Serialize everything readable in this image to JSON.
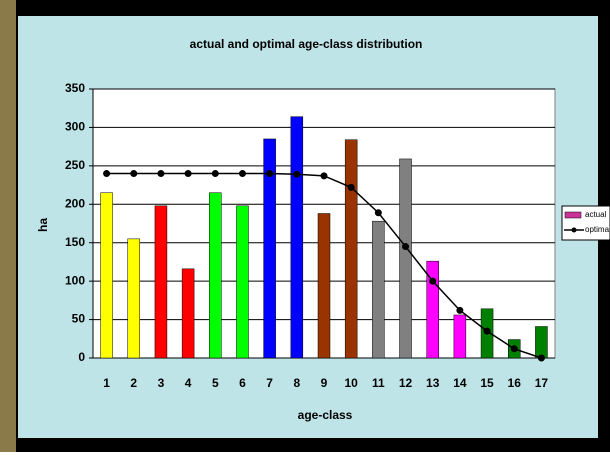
{
  "chart_data": {
    "type": "bar_line",
    "title": "actual and optimal age-class distribution",
    "x_label": "age-class",
    "y_label": "ha",
    "categories": [
      "1",
      "2",
      "3",
      "4",
      "5",
      "6",
      "7",
      "8",
      "9",
      "10",
      "11",
      "12",
      "13",
      "14",
      "15",
      "16",
      "17"
    ],
    "series": [
      {
        "name": "actual",
        "type": "bar",
        "color": "#cc3399",
        "colors": [
          "#ffff00",
          "#ffff00",
          "#ff0000",
          "#ff0000",
          "#00ff00",
          "#00ff00",
          "#0000ff",
          "#0000ff",
          "#993300",
          "#993300",
          "#808080",
          "#808080",
          "#ff00ff",
          "#ff00ff",
          "#008000",
          "#008000",
          "#008000"
        ],
        "values": [
          215,
          155,
          198,
          116,
          215,
          198,
          285,
          314,
          188,
          284,
          178,
          259,
          126,
          56,
          64,
          24,
          41
        ]
      },
      {
        "name": "optimal",
        "type": "line",
        "color": "#000000",
        "values": [
          240,
          240,
          240,
          240,
          240,
          240,
          240,
          239,
          237,
          222,
          189,
          145,
          100,
          62,
          35,
          12,
          0
        ]
      }
    ],
    "ylim": [
      0,
      350
    ],
    "yticks": [
      0,
      50,
      100,
      150,
      200,
      250,
      300,
      350
    ],
    "grid": true,
    "legend": "right"
  }
}
